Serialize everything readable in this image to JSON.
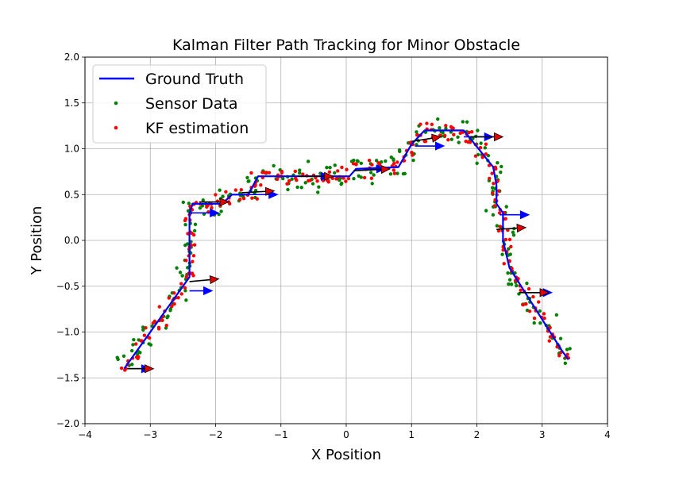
{
  "chart_data": {
    "type": "scatter",
    "title": "Kalman Filter Path Tracking for Minor Obstacle",
    "xlabel": "X Position",
    "ylabel": "Y Position",
    "xlim": [
      -4,
      4
    ],
    "ylim": [
      -2,
      2
    ],
    "xticks": [
      -4,
      -3,
      -2,
      -1,
      0,
      1,
      2,
      3,
      4
    ],
    "xtick_labels": [
      "−4",
      "−3",
      "−2",
      "−1",
      "0",
      "1",
      "2",
      "3",
      "4"
    ],
    "yticks": [
      -2.0,
      -1.5,
      -1.0,
      -0.5,
      0.0,
      0.5,
      1.0,
      1.5,
      2.0
    ],
    "ytick_labels": [
      "−2.0",
      "−1.5",
      "−1.0",
      "−0.5",
      "0.0",
      "0.5",
      "1.0",
      "1.5",
      "2.0"
    ],
    "grid": true,
    "legend_position": "top-left",
    "ground_truth": {
      "name": "Ground Truth",
      "color": "#0000ff",
      "points": [
        [
          -3.4,
          -1.4
        ],
        [
          -2.4,
          -0.4
        ],
        [
          -2.4,
          0.3
        ],
        [
          -2.35,
          0.4
        ],
        [
          -1.9,
          0.4
        ],
        [
          -1.75,
          0.5
        ],
        [
          -1.5,
          0.5
        ],
        [
          -1.35,
          0.7
        ],
        [
          -0.2,
          0.7
        ],
        [
          0.05,
          0.7
        ],
        [
          0.15,
          0.78
        ],
        [
          0.8,
          0.8
        ],
        [
          1.0,
          1.05
        ],
        [
          1.2,
          1.2
        ],
        [
          1.8,
          1.2
        ],
        [
          2.25,
          0.8
        ],
        [
          2.3,
          0.6
        ],
        [
          2.3,
          0.4
        ],
        [
          2.4,
          0.3
        ],
        [
          2.4,
          0.0
        ],
        [
          2.5,
          -0.3
        ],
        [
          3.3,
          -1.2
        ],
        [
          3.4,
          -1.3
        ]
      ]
    },
    "sensor_data": {
      "name": "Sensor Data",
      "color": "#008000"
    },
    "kf_estimation": {
      "name": "KF estimation",
      "color": "#ff0000"
    },
    "arrows_black": [
      [
        -3.35,
        -1.4,
        0.4,
        0.0
      ],
      [
        -2.4,
        -0.45,
        0.45,
        0.03
      ],
      [
        -2.25,
        0.42,
        0.45,
        0.0
      ],
      [
        -1.6,
        0.52,
        0.5,
        0.02
      ],
      [
        -0.75,
        0.7,
        0.55,
        0.0
      ],
      [
        0.12,
        0.76,
        0.55,
        0.02
      ],
      [
        1.0,
        1.08,
        0.45,
        0.05
      ],
      [
        1.9,
        1.13,
        0.5,
        0.0
      ],
      [
        2.3,
        0.12,
        0.45,
        0.02
      ],
      [
        2.65,
        -0.57,
        0.45,
        0.0
      ]
    ],
    "arrows_blue": [
      [
        -3.35,
        -1.4,
        0.35,
        0.0
      ],
      [
        -2.4,
        -0.55,
        0.35,
        0.0
      ],
      [
        -2.4,
        0.3,
        0.45,
        0.0
      ],
      [
        -1.5,
        0.5,
        0.45,
        0.0
      ],
      [
        -0.7,
        0.7,
        0.45,
        0.0
      ],
      [
        0.15,
        0.78,
        0.45,
        0.0
      ],
      [
        1.05,
        1.03,
        0.45,
        0.0
      ],
      [
        1.8,
        1.13,
        0.45,
        0.0
      ],
      [
        2.35,
        0.28,
        0.45,
        0.0
      ],
      [
        2.7,
        -0.57,
        0.45,
        0.0
      ]
    ],
    "legend": [
      "Ground Truth",
      "Sensor Data",
      "KF estimation"
    ]
  }
}
